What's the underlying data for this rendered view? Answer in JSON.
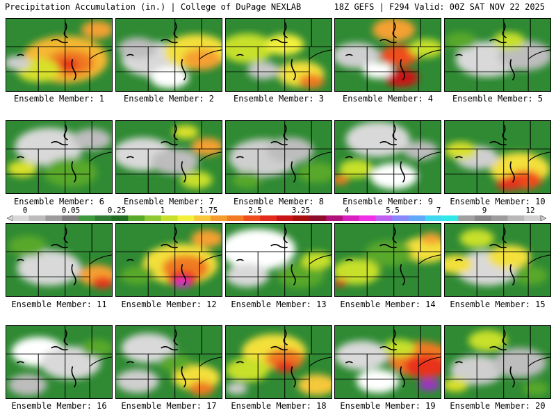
{
  "header": {
    "left_title": "Precipitation Accumulation (in.) | College of DuPage NEXLAB",
    "right_title": "18Z GEFS | F294 Valid: 00Z SAT NOV 22 2025"
  },
  "colorbar": {
    "labels": [
      "0",
      "0.05",
      "0.25",
      "1",
      "1.75",
      "2.5",
      "3.25",
      "4",
      "5.5",
      "7",
      "9",
      "12"
    ],
    "colors": [
      "#d8d8d8",
      "#bcbcbc",
      "#9c9c9c",
      "#7c7c7c",
      "#3e9a3e",
      "#2e7d32",
      "#1f6b1f",
      "#58a82a",
      "#8fc832",
      "#c7e02c",
      "#f3f03a",
      "#f7c83a",
      "#f59d2c",
      "#f27a24",
      "#ee4e1e",
      "#e42a1a",
      "#c81414",
      "#a80e0e",
      "#8c0c2a",
      "#b0107a",
      "#d820c0",
      "#f030e6",
      "#c060f0",
      "#8888f8",
      "#60a8f8",
      "#40d8f0",
      "#30e8e8",
      "#a0a0a0",
      "#888888",
      "#9c9c9c",
      "#b8b8b8",
      "#d0d0d0"
    ]
  },
  "members": [
    {
      "label": "Ensemble Member: 1",
      "blobs": [
        {
          "fx": 0.55,
          "fy": 0.55,
          "r": 0.4,
          "c": "#f5b832"
        },
        {
          "fx": 0.6,
          "fy": 0.6,
          "r": 0.22,
          "c": "#ef7a24"
        },
        {
          "fx": 0.58,
          "fy": 0.62,
          "r": 0.1,
          "c": "#e8321e"
        },
        {
          "fx": 0.3,
          "fy": 0.7,
          "r": 0.2,
          "c": "#d8e02c"
        },
        {
          "fx": 0.1,
          "fy": 0.6,
          "r": 0.12,
          "c": "#cfcfcf"
        },
        {
          "fx": 0.85,
          "fy": 0.15,
          "r": 0.15,
          "c": "#f3a030"
        }
      ]
    },
    {
      "label": "Ensemble Member: 2",
      "blobs": [
        {
          "fx": 0.35,
          "fy": 0.55,
          "r": 0.3,
          "c": "#d9d9d9"
        },
        {
          "fx": 0.2,
          "fy": 0.4,
          "r": 0.18,
          "c": "#bdbdbd"
        },
        {
          "fx": 0.75,
          "fy": 0.45,
          "r": 0.3,
          "c": "#f3e03a"
        },
        {
          "fx": 0.8,
          "fy": 0.55,
          "r": 0.18,
          "c": "#f5a030"
        },
        {
          "fx": 0.5,
          "fy": 0.8,
          "r": 0.18,
          "c": "#ffffff"
        }
      ]
    },
    {
      "label": "Ensemble Member: 3",
      "blobs": [
        {
          "fx": 0.2,
          "fy": 0.4,
          "r": 0.25,
          "c": "#c7e02c"
        },
        {
          "fx": 0.55,
          "fy": 0.35,
          "r": 0.18,
          "c": "#f3f03a"
        },
        {
          "fx": 0.7,
          "fy": 0.75,
          "r": 0.22,
          "c": "#f3e03a"
        },
        {
          "fx": 0.8,
          "fy": 0.85,
          "r": 0.12,
          "c": "#ef7a24"
        },
        {
          "fx": 0.35,
          "fy": 0.7,
          "r": 0.15,
          "c": "#c9c9c9"
        }
      ]
    },
    {
      "label": "Ensemble Member: 4",
      "blobs": [
        {
          "fx": 0.55,
          "fy": 0.15,
          "r": 0.2,
          "c": "#f5a030"
        },
        {
          "fx": 0.6,
          "fy": 0.5,
          "r": 0.18,
          "c": "#ef4e1e"
        },
        {
          "fx": 0.62,
          "fy": 0.8,
          "r": 0.16,
          "c": "#c81414"
        },
        {
          "fx": 0.2,
          "fy": 0.5,
          "r": 0.22,
          "c": "#cfcfcf"
        },
        {
          "fx": 0.4,
          "fy": 0.7,
          "r": 0.14,
          "c": "#ffffff"
        },
        {
          "fx": 0.85,
          "fy": 0.4,
          "r": 0.16,
          "c": "#c7e02c"
        }
      ]
    },
    {
      "label": "Ensemble Member: 5",
      "blobs": [
        {
          "fx": 0.4,
          "fy": 0.55,
          "r": 0.3,
          "c": "#d9d9d9"
        },
        {
          "fx": 0.75,
          "fy": 0.5,
          "r": 0.25,
          "c": "#bdbdbd"
        },
        {
          "fx": 0.15,
          "fy": 0.3,
          "r": 0.15,
          "c": "#58a82a"
        },
        {
          "fx": 0.6,
          "fy": 0.3,
          "r": 0.15,
          "c": "#c7e02c"
        }
      ]
    },
    {
      "label": "Ensemble Member: 6",
      "blobs": [
        {
          "fx": 0.4,
          "fy": 0.35,
          "r": 0.32,
          "c": "#d9d9d9"
        },
        {
          "fx": 0.15,
          "fy": 0.65,
          "r": 0.14,
          "c": "#d8e02c"
        },
        {
          "fx": 0.6,
          "fy": 0.7,
          "r": 0.25,
          "c": "#58a82a"
        },
        {
          "fx": 0.8,
          "fy": 0.25,
          "r": 0.18,
          "c": "#bdbdbd"
        }
      ]
    },
    {
      "label": "Ensemble Member: 7",
      "blobs": [
        {
          "fx": 0.25,
          "fy": 0.45,
          "r": 0.28,
          "c": "#d9d9d9"
        },
        {
          "fx": 0.55,
          "fy": 0.55,
          "r": 0.22,
          "c": "#bdbdbd"
        },
        {
          "fx": 0.85,
          "fy": 0.35,
          "r": 0.15,
          "c": "#f5a030"
        },
        {
          "fx": 0.75,
          "fy": 0.8,
          "r": 0.15,
          "c": "#c7e02c"
        },
        {
          "fx": 0.65,
          "fy": 0.15,
          "r": 0.12,
          "c": "#d8e02c"
        }
      ]
    },
    {
      "label": "Ensemble Member: 8",
      "blobs": [
        {
          "fx": 0.35,
          "fy": 0.5,
          "r": 0.32,
          "c": "#cfcfcf"
        },
        {
          "fx": 0.6,
          "fy": 0.4,
          "r": 0.22,
          "c": "#bdbdbd"
        },
        {
          "fx": 0.85,
          "fy": 0.7,
          "r": 0.18,
          "c": "#58a82a"
        },
        {
          "fx": 0.2,
          "fy": 0.8,
          "r": 0.14,
          "c": "#58a82a"
        }
      ]
    },
    {
      "label": "Ensemble Member: 9",
      "blobs": [
        {
          "fx": 0.4,
          "fy": 0.25,
          "r": 0.3,
          "c": "#d9d9d9"
        },
        {
          "fx": 0.55,
          "fy": 0.75,
          "r": 0.22,
          "c": "#ffffff"
        },
        {
          "fx": 0.2,
          "fy": 0.65,
          "r": 0.16,
          "c": "#c7e02c"
        },
        {
          "fx": 0.05,
          "fy": 0.8,
          "r": 0.08,
          "c": "#ef7a24"
        },
        {
          "fx": 0.8,
          "fy": 0.4,
          "r": 0.16,
          "c": "#bdbdbd"
        }
      ]
    },
    {
      "label": "Ensemble Member: 10",
      "blobs": [
        {
          "fx": 0.7,
          "fy": 0.65,
          "r": 0.28,
          "c": "#f3e03a"
        },
        {
          "fx": 0.75,
          "fy": 0.8,
          "r": 0.16,
          "c": "#ef4e1e"
        },
        {
          "fx": 0.6,
          "fy": 0.85,
          "r": 0.12,
          "c": "#e8321e"
        },
        {
          "fx": 0.3,
          "fy": 0.5,
          "r": 0.2,
          "c": "#cfcfcf"
        },
        {
          "fx": 0.15,
          "fy": 0.4,
          "r": 0.15,
          "c": "#d8e02c"
        }
      ]
    },
    {
      "label": "Ensemble Member: 11",
      "blobs": [
        {
          "fx": 0.4,
          "fy": 0.6,
          "r": 0.3,
          "c": "#d9d9d9"
        },
        {
          "fx": 0.2,
          "fy": 0.3,
          "r": 0.18,
          "c": "#58a82a"
        },
        {
          "fx": 0.85,
          "fy": 0.7,
          "r": 0.18,
          "c": "#f5a030"
        },
        {
          "fx": 0.9,
          "fy": 0.8,
          "r": 0.1,
          "c": "#e8321e"
        }
      ]
    },
    {
      "label": "Ensemble Member: 12",
      "blobs": [
        {
          "fx": 0.6,
          "fy": 0.55,
          "r": 0.35,
          "c": "#f3e03a"
        },
        {
          "fx": 0.65,
          "fy": 0.6,
          "r": 0.22,
          "c": "#ef7a24"
        },
        {
          "fx": 0.62,
          "fy": 0.75,
          "r": 0.14,
          "c": "#e8321e"
        },
        {
          "fx": 0.62,
          "fy": 0.8,
          "r": 0.07,
          "c": "#d830d8"
        },
        {
          "fx": 0.85,
          "fy": 0.2,
          "r": 0.15,
          "c": "#f5a030"
        },
        {
          "fx": 0.2,
          "fy": 0.7,
          "r": 0.16,
          "c": "#58a82a"
        }
      ]
    },
    {
      "label": "Ensemble Member: 13",
      "blobs": [
        {
          "fx": 0.3,
          "fy": 0.35,
          "r": 0.35,
          "c": "#ffffff"
        },
        {
          "fx": 0.2,
          "fy": 0.7,
          "r": 0.2,
          "c": "#d9d9d9"
        },
        {
          "fx": 0.7,
          "fy": 0.7,
          "r": 0.22,
          "c": "#58a82a"
        },
        {
          "fx": 0.85,
          "fy": 0.5,
          "r": 0.15,
          "c": "#c7e02c"
        }
      ]
    },
    {
      "label": "Ensemble Member: 14",
      "blobs": [
        {
          "fx": 0.2,
          "fy": 0.65,
          "r": 0.22,
          "c": "#c7e02c"
        },
        {
          "fx": 0.85,
          "fy": 0.35,
          "r": 0.22,
          "c": "#f3e03a"
        },
        {
          "fx": 0.9,
          "fy": 0.2,
          "r": 0.1,
          "c": "#f5a030"
        },
        {
          "fx": 0.5,
          "fy": 0.4,
          "r": 0.22,
          "c": "#58a82a"
        },
        {
          "fx": 0.05,
          "fy": 0.8,
          "r": 0.06,
          "c": "#e8321e"
        }
      ]
    },
    {
      "label": "Ensemble Member: 15",
      "blobs": [
        {
          "fx": 0.4,
          "fy": 0.6,
          "r": 0.3,
          "c": "#d9d9d9"
        },
        {
          "fx": 0.6,
          "fy": 0.45,
          "r": 0.2,
          "c": "#f3e03a"
        },
        {
          "fx": 0.1,
          "fy": 0.55,
          "r": 0.16,
          "c": "#f3e03a"
        },
        {
          "fx": 0.8,
          "fy": 0.7,
          "r": 0.16,
          "c": "#58a82a"
        },
        {
          "fx": 0.3,
          "fy": 0.2,
          "r": 0.16,
          "c": "#c7e02c"
        }
      ]
    },
    {
      "label": "Ensemble Member: 16",
      "blobs": [
        {
          "fx": 0.3,
          "fy": 0.35,
          "r": 0.25,
          "c": "#ffffff"
        },
        {
          "fx": 0.6,
          "fy": 0.5,
          "r": 0.28,
          "c": "#d9d9d9"
        },
        {
          "fx": 0.2,
          "fy": 0.8,
          "r": 0.18,
          "c": "#bdbdbd"
        },
        {
          "fx": 0.85,
          "fy": 0.3,
          "r": 0.15,
          "c": "#58a82a"
        }
      ]
    },
    {
      "label": "Ensemble Member: 17",
      "blobs": [
        {
          "fx": 0.3,
          "fy": 0.3,
          "r": 0.25,
          "c": "#d9d9d9"
        },
        {
          "fx": 0.2,
          "fy": 0.75,
          "r": 0.2,
          "c": "#cfcfcf"
        },
        {
          "fx": 0.75,
          "fy": 0.7,
          "r": 0.22,
          "c": "#f3e03a"
        },
        {
          "fx": 0.8,
          "fy": 0.85,
          "r": 0.12,
          "c": "#ef7a24"
        },
        {
          "fx": 0.55,
          "fy": 0.5,
          "r": 0.15,
          "c": "#58a82a"
        }
      ]
    },
    {
      "label": "Ensemble Member: 18",
      "blobs": [
        {
          "fx": 0.45,
          "fy": 0.35,
          "r": 0.3,
          "c": "#f3e03a"
        },
        {
          "fx": 0.55,
          "fy": 0.45,
          "r": 0.18,
          "c": "#ef7a24"
        },
        {
          "fx": 0.55,
          "fy": 0.55,
          "r": 0.1,
          "c": "#e8321e"
        },
        {
          "fx": 0.2,
          "fy": 0.6,
          "r": 0.2,
          "c": "#c7e02c"
        },
        {
          "fx": 0.85,
          "fy": 0.8,
          "r": 0.18,
          "c": "#f5c83a"
        },
        {
          "fx": 0.1,
          "fy": 0.85,
          "r": 0.1,
          "c": "#cfcfcf"
        }
      ]
    },
    {
      "label": "Ensemble Member: 19",
      "blobs": [
        {
          "fx": 0.8,
          "fy": 0.45,
          "r": 0.3,
          "c": "#ef7a24"
        },
        {
          "fx": 0.85,
          "fy": 0.55,
          "r": 0.2,
          "c": "#e8321e"
        },
        {
          "fx": 0.88,
          "fy": 0.8,
          "r": 0.1,
          "c": "#a030c8"
        },
        {
          "fx": 0.25,
          "fy": 0.4,
          "r": 0.25,
          "c": "#d9d9d9"
        },
        {
          "fx": 0.4,
          "fy": 0.75,
          "r": 0.2,
          "c": "#ffffff"
        },
        {
          "fx": 0.6,
          "fy": 0.3,
          "r": 0.15,
          "c": "#c7e02c"
        }
      ]
    },
    {
      "label": "Ensemble Member: 20",
      "blobs": [
        {
          "fx": 0.3,
          "fy": 0.6,
          "r": 0.25,
          "c": "#cfcfcf"
        },
        {
          "fx": 0.7,
          "fy": 0.5,
          "r": 0.25,
          "c": "#bdbdbd"
        },
        {
          "fx": 0.4,
          "fy": 0.2,
          "r": 0.18,
          "c": "#c7e02c"
        },
        {
          "fx": 0.1,
          "fy": 0.8,
          "r": 0.12,
          "c": "#d8e02c"
        },
        {
          "fx": 0.85,
          "fy": 0.85,
          "r": 0.12,
          "c": "#58a82a"
        }
      ]
    }
  ]
}
